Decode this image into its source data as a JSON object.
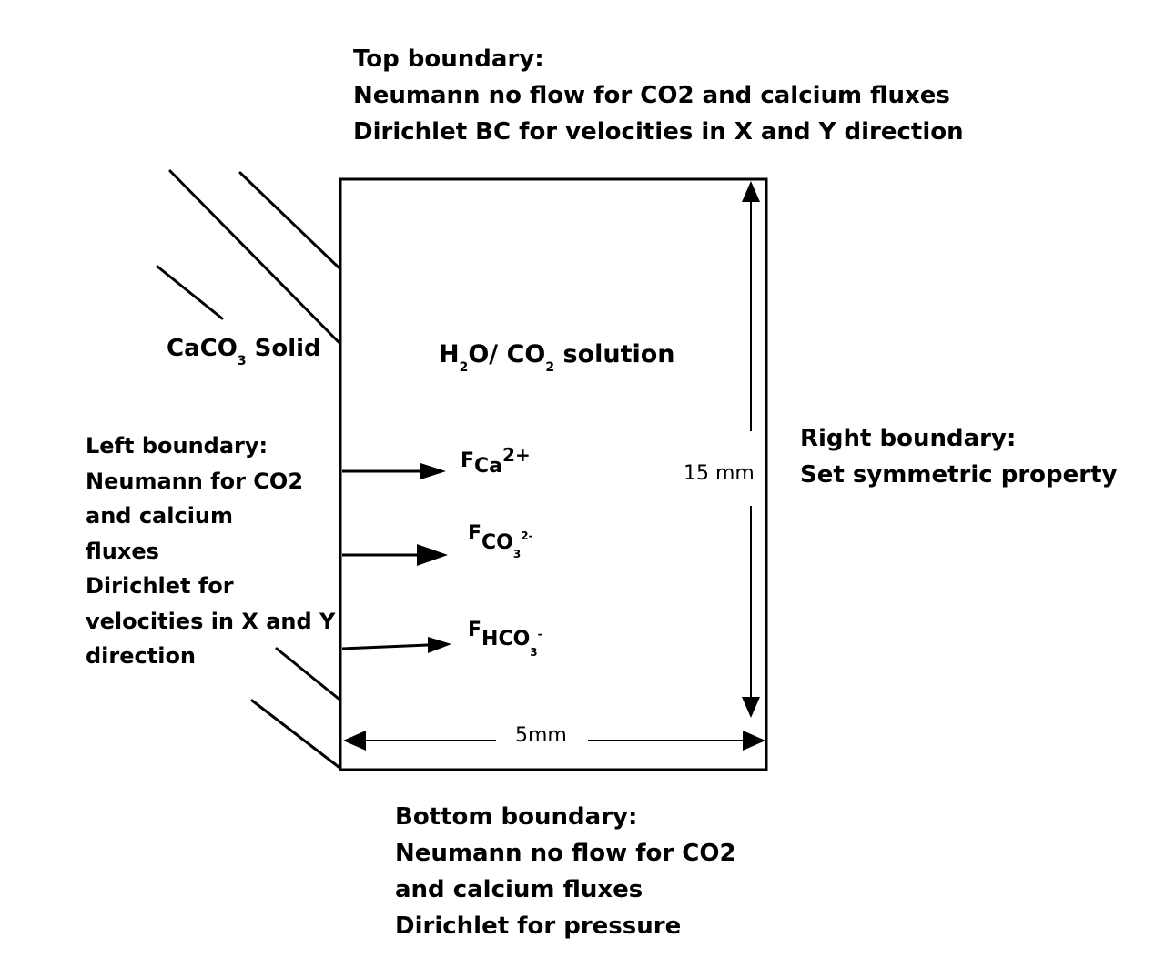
{
  "top_boundary": {
    "lines": [
      "Top boundary:",
      "Neumann no flow for CO2 and calcium fluxes",
      "Dirichlet BC for velocities in X and Y direction"
    ]
  },
  "left_boundary": {
    "lines": [
      "Left boundary:",
      "Neumann for CO2",
      "and calcium",
      "fluxes",
      "Dirichlet for",
      "velocities in X and Y",
      "direction"
    ]
  },
  "right_boundary": {
    "lines": [
      "Right boundary:",
      "Set symmetric property"
    ]
  },
  "bottom_boundary": {
    "lines": [
      "Bottom boundary:",
      "Neumann no flow for CO2",
      "and calcium fluxes",
      "Dirichlet for pressure"
    ]
  },
  "solid_label": {
    "prefix": "CaCO",
    "sub": "3",
    "suffix": " Solid"
  },
  "solution_label": {
    "h": "H",
    "h_sub": "2",
    "mid": "O/ CO",
    "co_sub": "2",
    "suffix": " solution"
  },
  "fluxes": [
    {
      "main": "F",
      "species": "Ca",
      "charge": "2+",
      "sub": ""
    },
    {
      "main": "F",
      "species": "CO",
      "charge": "2-",
      "sub": "3"
    },
    {
      "main": "F",
      "species": "HCO",
      "charge": "-",
      "sub": "3"
    }
  ],
  "dimensions": {
    "height": "15 mm",
    "width": "5mm"
  }
}
